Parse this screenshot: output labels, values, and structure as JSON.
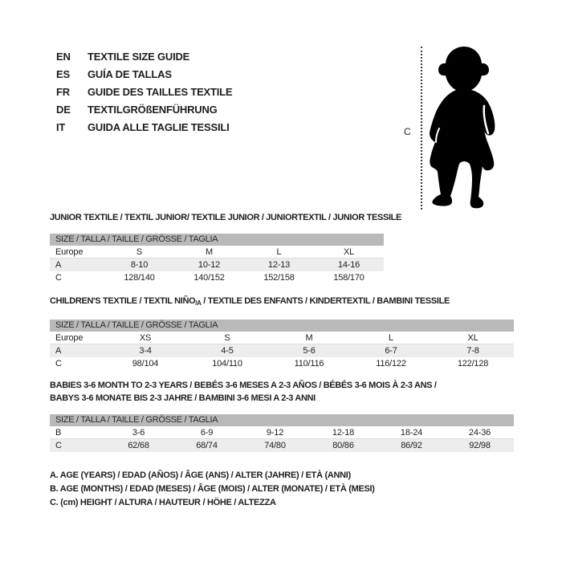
{
  "page": {
    "background": "#ffffff",
    "text_color": "#1e1e1e",
    "table_header_bg": "#b9b9b9",
    "table_row_alt_bg": "#ededed",
    "silhouette_color": "#000000"
  },
  "languages": [
    {
      "code": "EN",
      "label": "TEXTILE SIZE GUIDE"
    },
    {
      "code": "ES",
      "label": "GUÍA DE TALLAS"
    },
    {
      "code": "FR",
      "label": "GUIDE DES TAILLES TEXTILE"
    },
    {
      "code": "DE",
      "label": "TEXTILGRÖßENFÜHRUNG"
    },
    {
      "code": "IT",
      "label": "GUIDA ALLE TAGLIE TESSILI"
    }
  ],
  "figure": {
    "height_marker_label": "C",
    "image": "toddler-silhouette"
  },
  "sections": [
    {
      "title_segments": [
        {
          "text": "JUNIOR TEXTILE / TEXTIL JUNIOR/ TEXTILE JUNIOR / JUNIORTEXTIL / JUNIOR TESSILE"
        }
      ],
      "size_header": "SIZE / TALLA / TAILLE / GRÖSSE / TAGLIA",
      "rows": [
        {
          "label": "Europe",
          "values": [
            "S",
            "M",
            "L",
            "XL"
          ],
          "shaded": false
        },
        {
          "label": "A",
          "values": [
            "8-10",
            "10-12",
            "12-13",
            "14-16"
          ],
          "shaded": true
        },
        {
          "label": "C",
          "values": [
            "128/140",
            "140/152",
            "152/158",
            "158/170"
          ],
          "shaded": false
        }
      ]
    },
    {
      "title_segments": [
        {
          "text": "CHILDREN'S TEXTILE / TEXTIL NIÑO"
        },
        {
          "text": "/A",
          "sub": true
        },
        {
          "text": " / TEXTILE DES ENFANTS / KINDERTEXTIL / BAMBINI TESSILE"
        }
      ],
      "size_header": "SIZE / TALLA / TAILLE / GRÖSSE / TAGLIA",
      "rows": [
        {
          "label": "Europe",
          "values": [
            "XS",
            "S",
            "M",
            "L",
            "XL"
          ],
          "shaded": false
        },
        {
          "label": "A",
          "values": [
            "3-4",
            "4-5",
            "5-6",
            "6-7",
            "7-8"
          ],
          "shaded": true
        },
        {
          "label": "C",
          "values": [
            "98/104",
            "104/110",
            "110/116",
            "116/122",
            "122/128"
          ],
          "shaded": false
        }
      ]
    },
    {
      "title_segments": [
        {
          "text": "BABIES 3-6 MONTH TO 2-3 YEARS / BEBÉS 3-6 MESES A 2-3 AÑOS / BÉBÉS 3-6 MOIS À 2-3 ANS /"
        },
        {
          "break": true
        },
        {
          "text": "BABYS 3-6 MONATE BIS 2-3 JAHRE / BAMBINI 3-6 MESI A 2-3 ANNI"
        }
      ],
      "size_header": "SIZE / TALLA / TAILLE / GRÖSSE / TAGLIA",
      "rows": [
        {
          "label": "B",
          "values": [
            "3-6",
            "6-9",
            "9-12",
            "12-18",
            "18-24",
            "24-36"
          ],
          "shaded": false
        },
        {
          "label": "C",
          "values": [
            "62/68",
            "68/74",
            "74/80",
            "80/86",
            "86/92",
            "92/98"
          ],
          "shaded": true
        }
      ]
    }
  ],
  "legend": [
    "A. AGE (YEARS) / EDAD (AÑOS) / ÂGE (ANS) / ALTER (JAHRE) / ETÀ (ANNI)",
    "B. AGE (MONTHS) / EDAD (MESES) / ÂGE (MOIS) / ALTER (MONATE) / ETÀ (MESI)",
    "C. (cm) HEIGHT / ALTURA / HAUTEUR / HÖHE / ALTEZZA"
  ]
}
